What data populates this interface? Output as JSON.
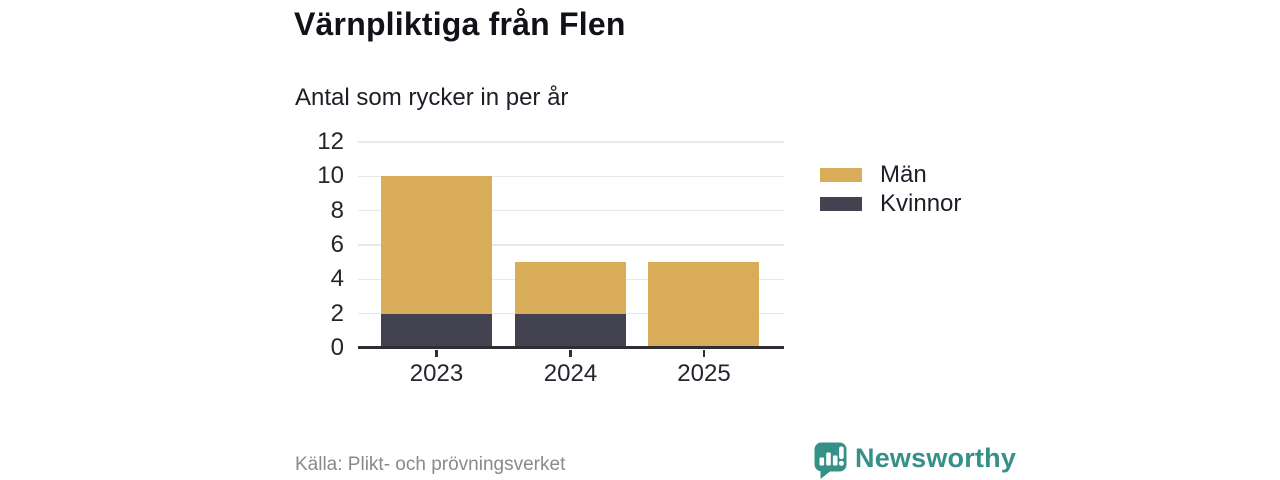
{
  "header": {
    "title": "Värnpliktiga från Flen",
    "subtitle": "Antal som rycker in per år"
  },
  "chart_data": {
    "type": "bar",
    "stacked": true,
    "title": "Värnpliktiga från Flen",
    "subtitle": "Antal som rycker in per år",
    "categories": [
      "2023",
      "2024",
      "2025"
    ],
    "series": [
      {
        "name": "Män",
        "color": "#d9ac5a",
        "values": [
          8,
          3,
          5
        ]
      },
      {
        "name": "Kvinnor",
        "color": "#434250",
        "values": [
          2,
          2,
          0
        ]
      }
    ],
    "stack_order_bottom_to_top": [
      "Kvinnor",
      "Män"
    ],
    "xlabel": "",
    "ylabel": "",
    "ylim": [
      0,
      12
    ],
    "yticks": [
      0,
      2,
      4,
      6,
      8,
      10,
      12
    ],
    "grid": true,
    "legend_position": "right"
  },
  "footer": {
    "source": "Källa: Plikt- och prövningsverket",
    "brand": "Newsworthy"
  },
  "colors": {
    "men": "#d9ac5a",
    "women": "#434250",
    "axis": "#2f2e36",
    "gridline": "#e8e8e8",
    "brand_teal": "#359087",
    "source_text": "#8a8a8a",
    "text_dark": "#101218"
  }
}
